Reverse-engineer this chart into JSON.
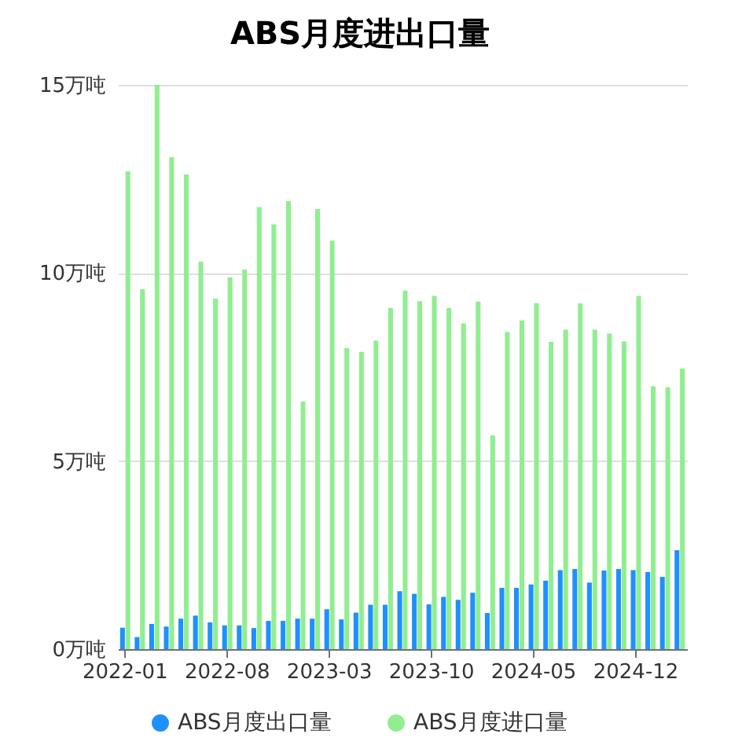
{
  "chart_data": {
    "type": "bar",
    "title": "ABS月度进出口量",
    "categories": [
      "2022-01",
      null,
      null,
      null,
      null,
      null,
      null,
      "2022-08",
      null,
      null,
      null,
      null,
      null,
      null,
      "2023-03",
      null,
      null,
      null,
      null,
      null,
      null,
      "2023-10",
      null,
      null,
      null,
      null,
      null,
      null,
      "2024-05",
      null,
      null,
      null,
      null,
      null,
      null,
      "2024-12",
      null,
      null,
      null
    ],
    "series": [
      {
        "name": "ABS月度出口量",
        "color": "#1e90ff",
        "values": [
          0.57,
          0.32,
          0.67,
          0.6,
          0.81,
          0.89,
          0.71,
          0.63,
          0.63,
          0.56,
          0.75,
          0.75,
          0.81,
          0.81,
          1.06,
          0.79,
          0.97,
          1.18,
          1.18,
          1.54,
          1.47,
          1.19,
          1.39,
          1.31,
          1.5,
          0.96,
          1.63,
          1.63,
          1.72,
          1.82,
          2.1,
          2.13,
          1.77,
          2.09,
          2.13,
          2.1,
          2.05,
          1.92,
          2.63
        ]
      },
      {
        "name": "ABS月度进口量",
        "color": "#90ee90",
        "values": [
          12.7,
          9.57,
          15.0,
          13.08,
          12.62,
          10.3,
          9.32,
          9.88,
          10.09,
          11.75,
          11.29,
          11.91,
          6.58,
          11.7,
          10.86,
          8.0,
          7.9,
          8.2,
          9.07,
          9.53,
          9.25,
          9.39,
          9.07,
          8.66,
          9.24,
          5.68,
          8.43,
          8.74,
          9.2,
          8.17,
          8.49,
          9.19,
          8.49,
          8.39,
          8.18,
          9.39,
          6.99,
          6.96,
          7.46
        ]
      }
    ],
    "ylim": [
      0,
      15
    ],
    "yticks": [
      {
        "value": 0,
        "label": "0万吨"
      },
      {
        "value": 5,
        "label": "5万吨"
      },
      {
        "value": 10,
        "label": "10万吨"
      },
      {
        "value": 15,
        "label": "15万吨"
      }
    ],
    "grid": "y",
    "legend": "bottom"
  }
}
